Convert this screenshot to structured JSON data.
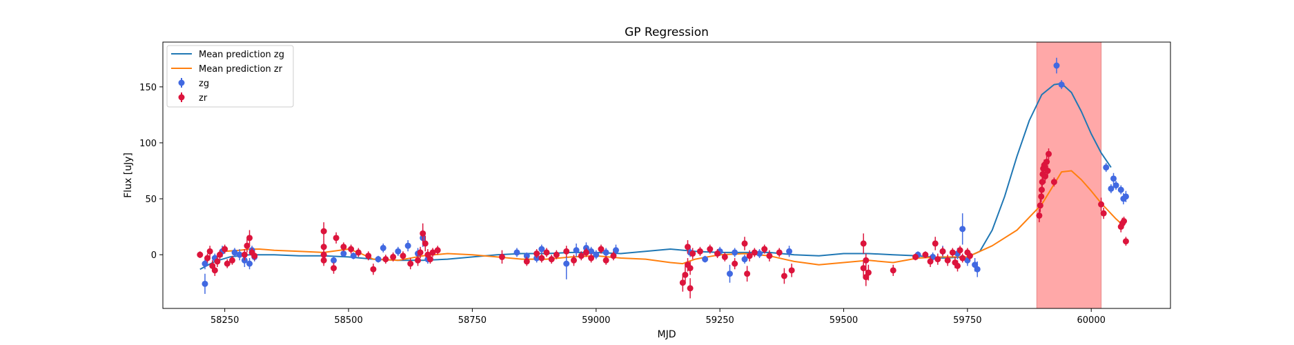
{
  "chart_data": {
    "type": "scatter",
    "title": "GP Regression",
    "xlabel": "MJD",
    "ylabel": "Flux [uJy]",
    "xlim": [
      58125,
      60160
    ],
    "ylim": [
      -48,
      190
    ],
    "xticks": [
      58250,
      58500,
      58750,
      59000,
      59250,
      59500,
      59750,
      60000
    ],
    "yticks": [
      0,
      50,
      100,
      150
    ],
    "grid": false,
    "legend_position": "top-left",
    "shaded_region": {
      "x0": 59890,
      "x1": 60020,
      "color": "#ff6e6e"
    },
    "series": [
      {
        "name": "Mean prediction zg",
        "kind": "line",
        "color": "#1f77b4",
        "x": [
          58200,
          58230,
          58260,
          58280,
          58300,
          58350,
          58400,
          58450,
          58500,
          58550,
          58600,
          58650,
          58700,
          58750,
          58800,
          58850,
          58900,
          58950,
          59000,
          59050,
          59100,
          59150,
          59200,
          59250,
          59300,
          59350,
          59400,
          59450,
          59500,
          59550,
          59600,
          59650,
          59700,
          59750,
          59775,
          59800,
          59825,
          59850,
          59875,
          59900,
          59925,
          59940,
          59960,
          59980,
          60000,
          60020,
          60040
        ],
        "y": [
          -13,
          -6,
          -2,
          -1,
          0,
          0,
          -1,
          -1,
          -2,
          -4,
          -5,
          -5,
          -4,
          -2,
          0,
          1,
          1,
          2,
          2,
          1,
          3,
          5,
          3,
          2,
          2,
          2,
          0,
          -1,
          1,
          1,
          0,
          -1,
          -3,
          -2,
          3,
          22,
          52,
          88,
          120,
          143,
          152,
          153,
          145,
          128,
          108,
          91,
          78
        ]
      },
      {
        "name": "Mean prediction zr",
        "kind": "line",
        "color": "#ff7f0e",
        "x": [
          58250,
          58280,
          58300,
          58320,
          58350,
          58400,
          58450,
          58500,
          58520,
          58550,
          58600,
          58650,
          58700,
          58750,
          58800,
          58850,
          58900,
          58950,
          59000,
          59050,
          59100,
          59150,
          59175,
          59200,
          59250,
          59300,
          59350,
          59400,
          59450,
          59500,
          59550,
          59600,
          59650,
          59700,
          59750,
          59775,
          59800,
          59850,
          59900,
          59925,
          59940,
          59960,
          59980,
          60000,
          60020,
          60050,
          60060
        ],
        "y": [
          3,
          4,
          5,
          5,
          4,
          3,
          2,
          5,
          2,
          -4,
          -5,
          -1,
          1,
          0,
          -2,
          -4,
          -4,
          -2,
          -1,
          -3,
          -4,
          -7,
          -8,
          -4,
          0,
          1,
          -1,
          -6,
          -9,
          -7,
          -5,
          -7,
          -3,
          -2,
          -2,
          3,
          8,
          22,
          45,
          63,
          74,
          75,
          67,
          57,
          46,
          32,
          28
        ]
      },
      {
        "name": "zg",
        "kind": "errorbar",
        "color": "#4169e1",
        "points": [
          {
            "x": 58210,
            "y": -8,
            "e": 5
          },
          {
            "x": 58210,
            "y": -26,
            "e": 9
          },
          {
            "x": 58230,
            "y": -3,
            "e": 4
          },
          {
            "x": 58245,
            "y": 3,
            "e": 5
          },
          {
            "x": 58270,
            "y": 2,
            "e": 4
          },
          {
            "x": 58280,
            "y": 0,
            "e": 5
          },
          {
            "x": 58290,
            "y": -5,
            "e": 6
          },
          {
            "x": 58300,
            "y": -8,
            "e": 5
          },
          {
            "x": 58305,
            "y": 4,
            "e": 4
          },
          {
            "x": 58310,
            "y": -2,
            "e": 4
          },
          {
            "x": 58470,
            "y": -5,
            "e": 4
          },
          {
            "x": 58490,
            "y": 1,
            "e": 3
          },
          {
            "x": 58510,
            "y": -1,
            "e": 3
          },
          {
            "x": 58560,
            "y": -4,
            "e": 3
          },
          {
            "x": 58570,
            "y": 6,
            "e": 4
          },
          {
            "x": 58600,
            "y": 3,
            "e": 4
          },
          {
            "x": 58620,
            "y": 8,
            "e": 5
          },
          {
            "x": 58640,
            "y": 1,
            "e": 5
          },
          {
            "x": 58650,
            "y": 15,
            "e": 8
          },
          {
            "x": 58660,
            "y": -4,
            "e": 4
          },
          {
            "x": 58840,
            "y": 2,
            "e": 4
          },
          {
            "x": 58860,
            "y": -1,
            "e": 3
          },
          {
            "x": 58880,
            "y": -3,
            "e": 4
          },
          {
            "x": 58890,
            "y": 5,
            "e": 4
          },
          {
            "x": 58940,
            "y": -8,
            "e": 14
          },
          {
            "x": 58960,
            "y": 4,
            "e": 6
          },
          {
            "x": 58980,
            "y": 6,
            "e": 5
          },
          {
            "x": 58990,
            "y": 3,
            "e": 4
          },
          {
            "x": 59000,
            "y": 0,
            "e": 4
          },
          {
            "x": 59020,
            "y": 2,
            "e": 4
          },
          {
            "x": 59040,
            "y": 4,
            "e": 5
          },
          {
            "x": 59190,
            "y": 2,
            "e": 4
          },
          {
            "x": 59220,
            "y": -4,
            "e": 3
          },
          {
            "x": 59250,
            "y": 3,
            "e": 4
          },
          {
            "x": 59270,
            "y": -17,
            "e": 8
          },
          {
            "x": 59280,
            "y": 2,
            "e": 4
          },
          {
            "x": 59300,
            "y": -4,
            "e": 4
          },
          {
            "x": 59330,
            "y": 1,
            "e": 4
          },
          {
            "x": 59390,
            "y": 3,
            "e": 5
          },
          {
            "x": 59650,
            "y": 0,
            "e": 3
          },
          {
            "x": 59680,
            "y": -2,
            "e": 4
          },
          {
            "x": 59700,
            "y": 3,
            "e": 5
          },
          {
            "x": 59730,
            "y": 1,
            "e": 5
          },
          {
            "x": 59740,
            "y": 23,
            "e": 14
          },
          {
            "x": 59750,
            "y": -5,
            "e": 5
          },
          {
            "x": 59765,
            "y": -9,
            "e": 6
          },
          {
            "x": 59770,
            "y": -13,
            "e": 7
          },
          {
            "x": 59930,
            "y": 169,
            "e": 7
          },
          {
            "x": 59940,
            "y": 152,
            "e": 4
          },
          {
            "x": 60030,
            "y": 78,
            "e": 4
          },
          {
            "x": 60040,
            "y": 59,
            "e": 4
          },
          {
            "x": 60045,
            "y": 68,
            "e": 5
          },
          {
            "x": 60050,
            "y": 62,
            "e": 4
          },
          {
            "x": 60060,
            "y": 58,
            "e": 4
          },
          {
            "x": 60065,
            "y": 50,
            "e": 5
          },
          {
            "x": 60070,
            "y": 52,
            "e": 5
          }
        ]
      },
      {
        "name": "zr",
        "kind": "errorbar",
        "color": "#dc143c",
        "points": [
          {
            "x": 58200,
            "y": 0,
            "e": 3
          },
          {
            "x": 58215,
            "y": -3,
            "e": 4
          },
          {
            "x": 58220,
            "y": 3,
            "e": 5
          },
          {
            "x": 58225,
            "y": -10,
            "e": 5
          },
          {
            "x": 58230,
            "y": -14,
            "e": 5
          },
          {
            "x": 58235,
            "y": -6,
            "e": 5
          },
          {
            "x": 58240,
            "y": 0,
            "e": 4
          },
          {
            "x": 58250,
            "y": 5,
            "e": 4
          },
          {
            "x": 58255,
            "y": -8,
            "e": 4
          },
          {
            "x": 58265,
            "y": -5,
            "e": 4
          },
          {
            "x": 58290,
            "y": 0,
            "e": 5
          },
          {
            "x": 58295,
            "y": 8,
            "e": 6
          },
          {
            "x": 58300,
            "y": 15,
            "e": 7
          },
          {
            "x": 58305,
            "y": 2,
            "e": 4
          },
          {
            "x": 58310,
            "y": -1,
            "e": 4
          },
          {
            "x": 58450,
            "y": 21,
            "e": 8
          },
          {
            "x": 58450,
            "y": 7,
            "e": 6
          },
          {
            "x": 58450,
            "y": 0,
            "e": 5
          },
          {
            "x": 58450,
            "y": -5,
            "e": 5
          },
          {
            "x": 58470,
            "y": -12,
            "e": 5
          },
          {
            "x": 58475,
            "y": 15,
            "e": 5
          },
          {
            "x": 58490,
            "y": 7,
            "e": 4
          },
          {
            "x": 58505,
            "y": 5,
            "e": 4
          },
          {
            "x": 58520,
            "y": 2,
            "e": 4
          },
          {
            "x": 58540,
            "y": -1,
            "e": 4
          },
          {
            "x": 58550,
            "y": -13,
            "e": 5
          },
          {
            "x": 58575,
            "y": -4,
            "e": 4
          },
          {
            "x": 58590,
            "y": -2,
            "e": 4
          },
          {
            "x": 58610,
            "y": -1,
            "e": 4
          },
          {
            "x": 58625,
            "y": -8,
            "e": 5
          },
          {
            "x": 58640,
            "y": -5,
            "e": 5
          },
          {
            "x": 58645,
            "y": 2,
            "e": 5
          },
          {
            "x": 58650,
            "y": 19,
            "e": 9
          },
          {
            "x": 58655,
            "y": 10,
            "e": 7
          },
          {
            "x": 58660,
            "y": 0,
            "e": 5
          },
          {
            "x": 58665,
            "y": -4,
            "e": 4
          },
          {
            "x": 58670,
            "y": 2,
            "e": 4
          },
          {
            "x": 58680,
            "y": 4,
            "e": 4
          },
          {
            "x": 58810,
            "y": -2,
            "e": 6
          },
          {
            "x": 58860,
            "y": -6,
            "e": 4
          },
          {
            "x": 58880,
            "y": 1,
            "e": 4
          },
          {
            "x": 58890,
            "y": -3,
            "e": 4
          },
          {
            "x": 58900,
            "y": 2,
            "e": 4
          },
          {
            "x": 58910,
            "y": -4,
            "e": 4
          },
          {
            "x": 58920,
            "y": 0,
            "e": 4
          },
          {
            "x": 58940,
            "y": 3,
            "e": 5
          },
          {
            "x": 58955,
            "y": -5,
            "e": 5
          },
          {
            "x": 58970,
            "y": -1,
            "e": 4
          },
          {
            "x": 58980,
            "y": 2,
            "e": 4
          },
          {
            "x": 58990,
            "y": -3,
            "e": 4
          },
          {
            "x": 59010,
            "y": 5,
            "e": 4
          },
          {
            "x": 59020,
            "y": -5,
            "e": 4
          },
          {
            "x": 59035,
            "y": -1,
            "e": 4
          },
          {
            "x": 59175,
            "y": -25,
            "e": 8
          },
          {
            "x": 59180,
            "y": -18,
            "e": 8
          },
          {
            "x": 59185,
            "y": -9,
            "e": 6
          },
          {
            "x": 59185,
            "y": 7,
            "e": 6
          },
          {
            "x": 59190,
            "y": -12,
            "e": 6
          },
          {
            "x": 59190,
            "y": -30,
            "e": 9
          },
          {
            "x": 59195,
            "y": 1,
            "e": 5
          },
          {
            "x": 59210,
            "y": 3,
            "e": 4
          },
          {
            "x": 59230,
            "y": 5,
            "e": 4
          },
          {
            "x": 59245,
            "y": 1,
            "e": 4
          },
          {
            "x": 59260,
            "y": -2,
            "e": 4
          },
          {
            "x": 59280,
            "y": -8,
            "e": 5
          },
          {
            "x": 59300,
            "y": 10,
            "e": 6
          },
          {
            "x": 59305,
            "y": -17,
            "e": 7
          },
          {
            "x": 59310,
            "y": -1,
            "e": 5
          },
          {
            "x": 59320,
            "y": 2,
            "e": 4
          },
          {
            "x": 59340,
            "y": 5,
            "e": 4
          },
          {
            "x": 59350,
            "y": -1,
            "e": 5
          },
          {
            "x": 59370,
            "y": 2,
            "e": 4
          },
          {
            "x": 59380,
            "y": -19,
            "e": 7
          },
          {
            "x": 59395,
            "y": -14,
            "e": 6
          },
          {
            "x": 59540,
            "y": 10,
            "e": 9
          },
          {
            "x": 59540,
            "y": -12,
            "e": 7
          },
          {
            "x": 59545,
            "y": -5,
            "e": 6
          },
          {
            "x": 59545,
            "y": -20,
            "e": 8
          },
          {
            "x": 59550,
            "y": -16,
            "e": 7
          },
          {
            "x": 59600,
            "y": -14,
            "e": 5
          },
          {
            "x": 59645,
            "y": -2,
            "e": 3
          },
          {
            "x": 59665,
            "y": 0,
            "e": 3
          },
          {
            "x": 59675,
            "y": -6,
            "e": 5
          },
          {
            "x": 59685,
            "y": 10,
            "e": 6
          },
          {
            "x": 59690,
            "y": -4,
            "e": 5
          },
          {
            "x": 59700,
            "y": 3,
            "e": 4
          },
          {
            "x": 59710,
            "y": -5,
            "e": 5
          },
          {
            "x": 59720,
            "y": 2,
            "e": 4
          },
          {
            "x": 59725,
            "y": -7,
            "e": 5
          },
          {
            "x": 59730,
            "y": -10,
            "e": 5
          },
          {
            "x": 59735,
            "y": 4,
            "e": 4
          },
          {
            "x": 59740,
            "y": -3,
            "e": 4
          },
          {
            "x": 59750,
            "y": 2,
            "e": 4
          },
          {
            "x": 59755,
            "y": -1,
            "e": 4
          },
          {
            "x": 59895,
            "y": 35,
            "e": 6
          },
          {
            "x": 59897,
            "y": 44,
            "e": 6
          },
          {
            "x": 59899,
            "y": 52,
            "e": 5
          },
          {
            "x": 59900,
            "y": 58,
            "e": 6
          },
          {
            "x": 59901,
            "y": 65,
            "e": 6
          },
          {
            "x": 59902,
            "y": 72,
            "e": 6
          },
          {
            "x": 59903,
            "y": 77,
            "e": 6
          },
          {
            "x": 59905,
            "y": 80,
            "e": 5
          },
          {
            "x": 59907,
            "y": 70,
            "e": 6
          },
          {
            "x": 59910,
            "y": 83,
            "e": 6
          },
          {
            "x": 59912,
            "y": 75,
            "e": 5
          },
          {
            "x": 59914,
            "y": 90,
            "e": 5
          },
          {
            "x": 59925,
            "y": 65,
            "e": 4
          },
          {
            "x": 60020,
            "y": 45,
            "e": 6
          },
          {
            "x": 60025,
            "y": 37,
            "e": 5
          },
          {
            "x": 60060,
            "y": 25,
            "e": 5
          },
          {
            "x": 60063,
            "y": 28,
            "e": 5
          },
          {
            "x": 60066,
            "y": 30,
            "e": 4
          },
          {
            "x": 60070,
            "y": 12,
            "e": 4
          }
        ]
      }
    ]
  }
}
